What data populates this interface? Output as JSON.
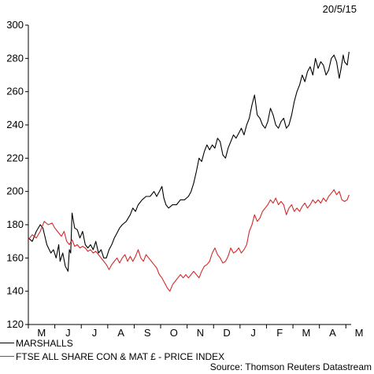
{
  "header": {
    "date": "20/5/15"
  },
  "legend": {
    "items": [
      {
        "label": "MARSHALLS",
        "color": "#000000"
      },
      {
        "label": "FTSE ALL SHARE CON & MAT £ - PRICE INDEX",
        "color": "#d42a2a"
      }
    ]
  },
  "footer": {
    "source": "Source: Thomson Reuters Datastream"
  },
  "chart_data": {
    "type": "line",
    "ylim": [
      120,
      300
    ],
    "yticks": [
      120,
      140,
      160,
      180,
      200,
      220,
      240,
      260,
      280,
      300
    ],
    "xlim": [
      0,
      12.2
    ],
    "xticks": [
      "M",
      "J",
      "J",
      "A",
      "S",
      "O",
      "N",
      "D",
      "J",
      "F",
      "M",
      "A",
      "M"
    ],
    "series": [
      {
        "name": "MARSHALLS",
        "color": "#000000",
        "points": [
          [
            0,
            172
          ],
          [
            0.15,
            170
          ],
          [
            0.3,
            176
          ],
          [
            0.45,
            180
          ],
          [
            0.55,
            178
          ],
          [
            0.7,
            168
          ],
          [
            0.85,
            163
          ],
          [
            0.95,
            165
          ],
          [
            1.05,
            160
          ],
          [
            1.15,
            168
          ],
          [
            1.2,
            158
          ],
          [
            1.3,
            163
          ],
          [
            1.4,
            155
          ],
          [
            1.5,
            152
          ],
          [
            1.55,
            165
          ],
          [
            1.6,
            163
          ],
          [
            1.65,
            187
          ],
          [
            1.75,
            178
          ],
          [
            1.85,
            177
          ],
          [
            1.95,
            172
          ],
          [
            2.05,
            176
          ],
          [
            2.15,
            168
          ],
          [
            2.25,
            166
          ],
          [
            2.35,
            168
          ],
          [
            2.45,
            165
          ],
          [
            2.55,
            170
          ],
          [
            2.65,
            163
          ],
          [
            2.75,
            165
          ],
          [
            2.85,
            160
          ],
          [
            2.95,
            160
          ],
          [
            3.05,
            165
          ],
          [
            3.15,
            168
          ],
          [
            3.25,
            172
          ],
          [
            3.35,
            175
          ],
          [
            3.45,
            178
          ],
          [
            3.55,
            180
          ],
          [
            3.7,
            182
          ],
          [
            3.85,
            186
          ],
          [
            3.95,
            190
          ],
          [
            4.05,
            188
          ],
          [
            4.15,
            192
          ],
          [
            4.3,
            195
          ],
          [
            4.45,
            197
          ],
          [
            4.6,
            197
          ],
          [
            4.75,
            200
          ],
          [
            4.85,
            197
          ],
          [
            4.95,
            200
          ],
          [
            5.05,
            203
          ],
          [
            5.12,
            196
          ],
          [
            5.2,
            192
          ],
          [
            5.3,
            190
          ],
          [
            5.45,
            192
          ],
          [
            5.6,
            192
          ],
          [
            5.75,
            195
          ],
          [
            5.9,
            195
          ],
          [
            6.05,
            197
          ],
          [
            6.15,
            200
          ],
          [
            6.25,
            205
          ],
          [
            6.35,
            212
          ],
          [
            6.45,
            220
          ],
          [
            6.55,
            218
          ],
          [
            6.65,
            224
          ],
          [
            6.75,
            228
          ],
          [
            6.85,
            225
          ],
          [
            6.95,
            228
          ],
          [
            7.05,
            226
          ],
          [
            7.15,
            232
          ],
          [
            7.25,
            230
          ],
          [
            7.35,
            222
          ],
          [
            7.45,
            220
          ],
          [
            7.55,
            226
          ],
          [
            7.65,
            230
          ],
          [
            7.75,
            234
          ],
          [
            7.85,
            232
          ],
          [
            7.95,
            235
          ],
          [
            8.05,
            238
          ],
          [
            8.15,
            234
          ],
          [
            8.25,
            240
          ],
          [
            8.35,
            244
          ],
          [
            8.45,
            252
          ],
          [
            8.55,
            258
          ],
          [
            8.65,
            246
          ],
          [
            8.75,
            244
          ],
          [
            8.85,
            240
          ],
          [
            8.95,
            238
          ],
          [
            9.05,
            242
          ],
          [
            9.15,
            250
          ],
          [
            9.25,
            246
          ],
          [
            9.35,
            240
          ],
          [
            9.45,
            238
          ],
          [
            9.55,
            242
          ],
          [
            9.65,
            244
          ],
          [
            9.75,
            238
          ],
          [
            9.85,
            240
          ],
          [
            9.95,
            246
          ],
          [
            10.05,
            254
          ],
          [
            10.15,
            260
          ],
          [
            10.25,
            264
          ],
          [
            10.35,
            270
          ],
          [
            10.45,
            266
          ],
          [
            10.55,
            272
          ],
          [
            10.65,
            275
          ],
          [
            10.75,
            270
          ],
          [
            10.85,
            280
          ],
          [
            10.95,
            274
          ],
          [
            11.05,
            278
          ],
          [
            11.15,
            276
          ],
          [
            11.25,
            270
          ],
          [
            11.35,
            273
          ],
          [
            11.45,
            280
          ],
          [
            11.55,
            282
          ],
          [
            11.65,
            278
          ],
          [
            11.75,
            268
          ],
          [
            11.82,
            274
          ],
          [
            11.9,
            282
          ],
          [
            11.95,
            278
          ],
          [
            12.05,
            276
          ],
          [
            12.12,
            284
          ]
        ]
      },
      {
        "name": "FTSE ALL SHARE CON & MAT £ - PRICE INDEX",
        "color": "#d42a2a",
        "points": [
          [
            0,
            171
          ],
          [
            0.15,
            174
          ],
          [
            0.3,
            172
          ],
          [
            0.45,
            176
          ],
          [
            0.6,
            182
          ],
          [
            0.75,
            180
          ],
          [
            0.9,
            181
          ],
          [
            1.0,
            178
          ],
          [
            1.1,
            176
          ],
          [
            1.25,
            173
          ],
          [
            1.35,
            176
          ],
          [
            1.45,
            170
          ],
          [
            1.55,
            168
          ],
          [
            1.65,
            171
          ],
          [
            1.75,
            167
          ],
          [
            1.85,
            168
          ],
          [
            1.95,
            166
          ],
          [
            2.05,
            167
          ],
          [
            2.15,
            166
          ],
          [
            2.25,
            164
          ],
          [
            2.35,
            165
          ],
          [
            2.45,
            163
          ],
          [
            2.55,
            164
          ],
          [
            2.65,
            162
          ],
          [
            2.75,
            160
          ],
          [
            2.85,
            158
          ],
          [
            2.95,
            156
          ],
          [
            3.05,
            153
          ],
          [
            3.15,
            156
          ],
          [
            3.25,
            158
          ],
          [
            3.35,
            160
          ],
          [
            3.45,
            157
          ],
          [
            3.55,
            160
          ],
          [
            3.65,
            162
          ],
          [
            3.75,
            158
          ],
          [
            3.85,
            161
          ],
          [
            3.95,
            158
          ],
          [
            4.05,
            161
          ],
          [
            4.15,
            165
          ],
          [
            4.25,
            160
          ],
          [
            4.35,
            158
          ],
          [
            4.45,
            162
          ],
          [
            4.55,
            160
          ],
          [
            4.65,
            158
          ],
          [
            4.75,
            156
          ],
          [
            4.85,
            154
          ],
          [
            4.95,
            150
          ],
          [
            5.05,
            148
          ],
          [
            5.15,
            145
          ],
          [
            5.25,
            142
          ],
          [
            5.35,
            140
          ],
          [
            5.45,
            144
          ],
          [
            5.55,
            146
          ],
          [
            5.65,
            148
          ],
          [
            5.75,
            150
          ],
          [
            5.85,
            148
          ],
          [
            5.95,
            150
          ],
          [
            6.05,
            148
          ],
          [
            6.15,
            150
          ],
          [
            6.25,
            152
          ],
          [
            6.35,
            150
          ],
          [
            6.45,
            148
          ],
          [
            6.55,
            152
          ],
          [
            6.65,
            155
          ],
          [
            6.75,
            156
          ],
          [
            6.85,
            158
          ],
          [
            6.95,
            163
          ],
          [
            7.05,
            166
          ],
          [
            7.15,
            162
          ],
          [
            7.25,
            160
          ],
          [
            7.35,
            157
          ],
          [
            7.45,
            158
          ],
          [
            7.55,
            161
          ],
          [
            7.65,
            166
          ],
          [
            7.75,
            163
          ],
          [
            7.85,
            164
          ],
          [
            7.95,
            166
          ],
          [
            8.05,
            163
          ],
          [
            8.15,
            165
          ],
          [
            8.25,
            168
          ],
          [
            8.35,
            176
          ],
          [
            8.45,
            180
          ],
          [
            8.55,
            186
          ],
          [
            8.65,
            182
          ],
          [
            8.75,
            184
          ],
          [
            8.85,
            188
          ],
          [
            8.95,
            190
          ],
          [
            9.05,
            192
          ],
          [
            9.15,
            195
          ],
          [
            9.25,
            193
          ],
          [
            9.35,
            196
          ],
          [
            9.45,
            192
          ],
          [
            9.55,
            194
          ],
          [
            9.65,
            192
          ],
          [
            9.75,
            186
          ],
          [
            9.85,
            190
          ],
          [
            9.95,
            192
          ],
          [
            10.05,
            188
          ],
          [
            10.15,
            190
          ],
          [
            10.25,
            188
          ],
          [
            10.35,
            191
          ],
          [
            10.45,
            193
          ],
          [
            10.55,
            190
          ],
          [
            10.65,
            192
          ],
          [
            10.75,
            195
          ],
          [
            10.85,
            193
          ],
          [
            10.95,
            195
          ],
          [
            11.05,
            193
          ],
          [
            11.15,
            196
          ],
          [
            11.25,
            194
          ],
          [
            11.35,
            197
          ],
          [
            11.45,
            199
          ],
          [
            11.55,
            201
          ],
          [
            11.65,
            198
          ],
          [
            11.75,
            200
          ],
          [
            11.85,
            195
          ],
          [
            11.95,
            194
          ],
          [
            12.05,
            195
          ],
          [
            12.12,
            198
          ]
        ]
      }
    ]
  }
}
